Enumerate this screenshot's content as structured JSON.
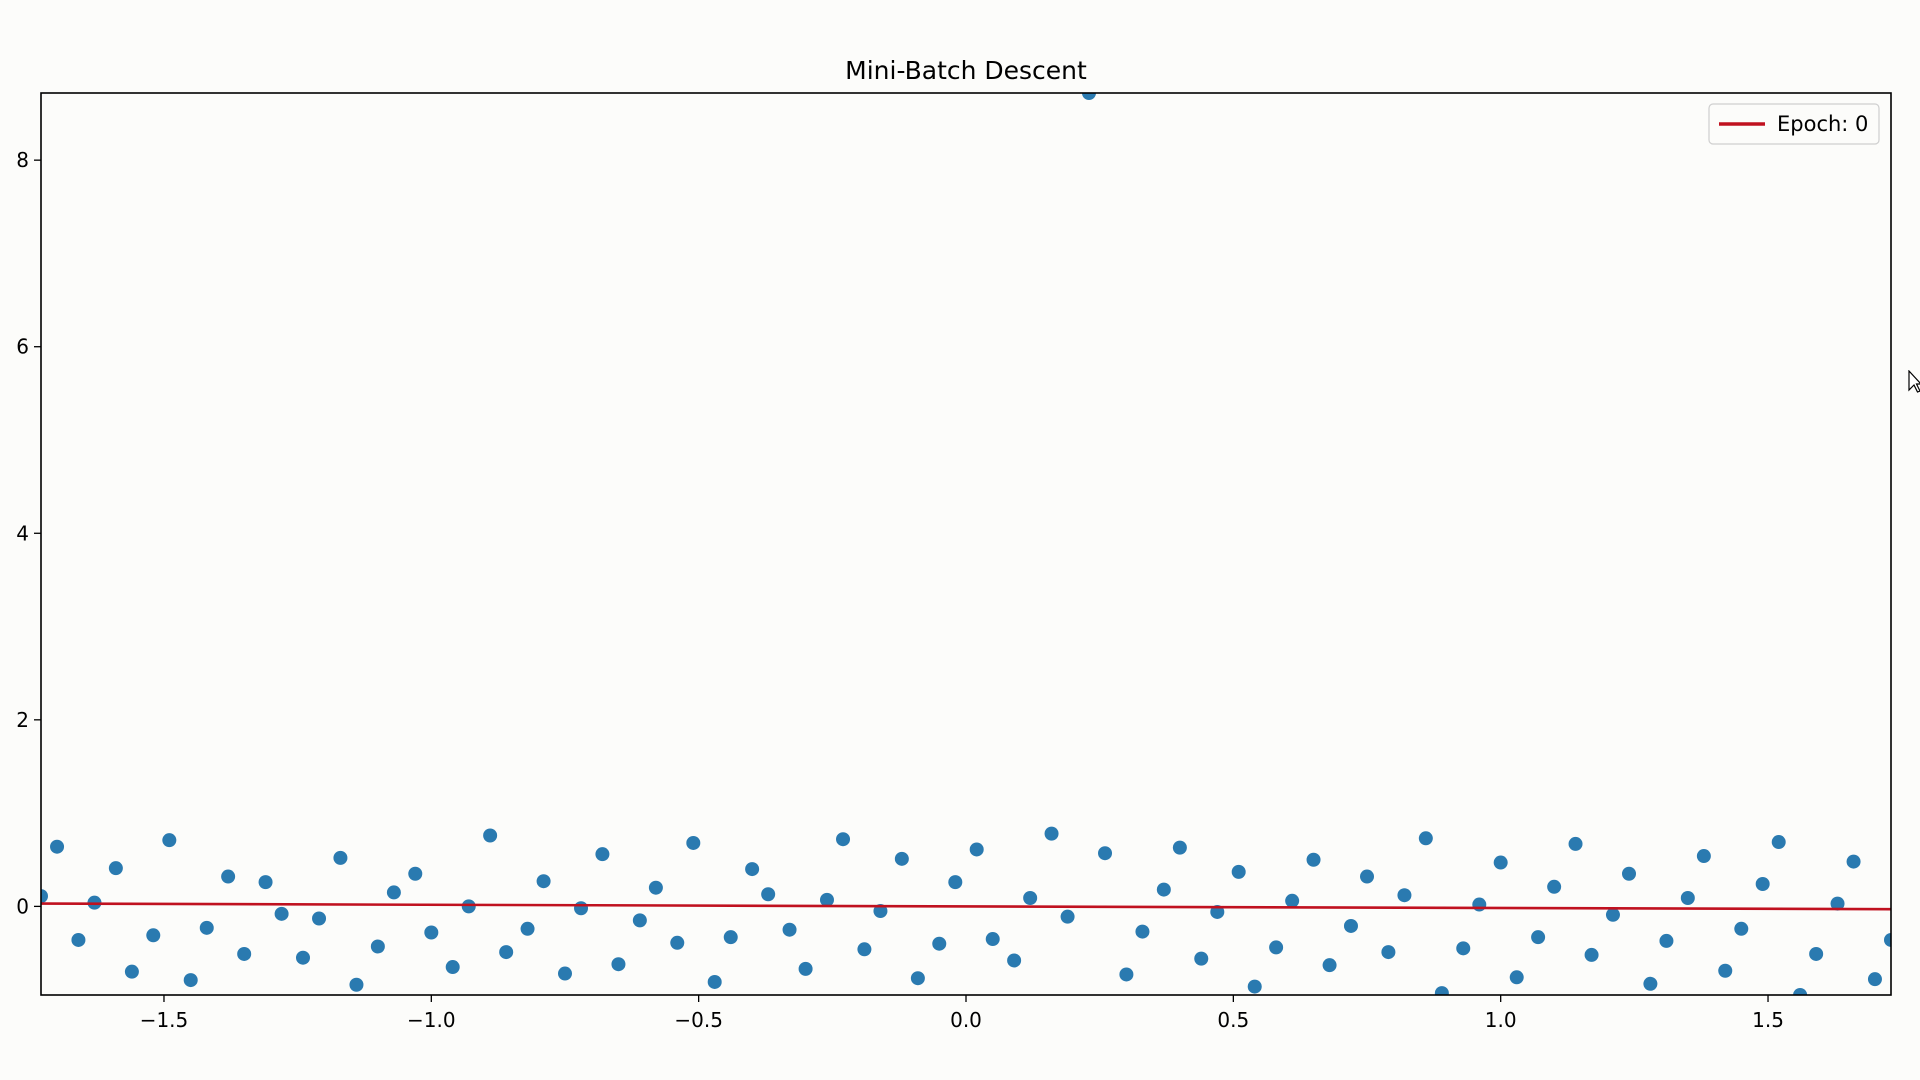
{
  "chart_data": {
    "type": "scatter",
    "title": "Mini-Batch Descent",
    "xlabel": "",
    "ylabel": "",
    "xlim": [
      -1.73,
      1.73
    ],
    "ylim": [
      -0.95,
      8.72
    ],
    "grid": false,
    "legend_position": "top-right",
    "x_ticks": [
      -1.5,
      -1.0,
      -0.5,
      0.0,
      0.5,
      1.0,
      1.5
    ],
    "x_tick_labels": [
      "−1.5",
      "−1.0",
      "−0.5",
      "0.0",
      "0.5",
      "1.0",
      "1.5"
    ],
    "y_ticks": [
      0,
      2,
      4,
      6,
      8
    ],
    "y_tick_labels": [
      "0",
      "2",
      "4",
      "6",
      "8"
    ],
    "scatter": {
      "color": "#2a7ab0",
      "x": [
        -1.73,
        -1.7,
        -1.66,
        -1.63,
        -1.59,
        -1.56,
        -1.52,
        -1.49,
        -1.45,
        -1.42,
        -1.38,
        -1.35,
        -1.31,
        -1.28,
        -1.24,
        -1.21,
        -1.17,
        -1.14,
        -1.1,
        -1.07,
        -1.03,
        -1.0,
        -0.96,
        -0.93,
        -0.89,
        -0.86,
        -0.82,
        -0.79,
        -0.75,
        -0.72,
        -0.68,
        -0.65,
        -0.61,
        -0.58,
        -0.54,
        -0.51,
        -0.47,
        -0.44,
        -0.4,
        -0.37,
        -0.33,
        -0.3,
        -0.26,
        -0.23,
        -0.19,
        -0.16,
        -0.12,
        -0.09,
        -0.05,
        -0.02,
        0.02,
        0.05,
        0.09,
        0.12,
        0.16,
        0.19,
        0.23,
        0.26,
        0.3,
        0.33,
        0.37,
        0.4,
        0.44,
        0.47,
        0.51,
        0.54,
        0.58,
        0.61,
        0.65,
        0.68,
        0.72,
        0.75,
        0.79,
        0.82,
        0.86,
        0.89,
        0.93,
        0.96,
        1.0,
        1.03,
        1.07,
        1.1,
        1.14,
        1.17,
        1.21,
        1.24,
        1.28,
        1.31,
        1.35,
        1.38,
        1.42,
        1.45,
        1.49,
        1.52,
        1.56,
        1.59,
        1.63,
        1.66,
        1.7,
        1.73
      ],
      "y": [
        0.11,
        0.64,
        -0.36,
        0.04,
        0.41,
        -0.7,
        -0.31,
        0.71,
        -0.79,
        -0.23,
        0.32,
        -0.51,
        0.26,
        -0.08,
        -0.55,
        -0.13,
        0.52,
        -0.84,
        -0.43,
        0.15,
        0.35,
        -0.28,
        -0.65,
        0.0,
        0.76,
        -0.49,
        -0.24,
        0.27,
        -0.72,
        -0.02,
        0.56,
        -0.62,
        -0.15,
        0.2,
        -0.39,
        0.68,
        -0.81,
        -0.33,
        0.4,
        0.13,
        -0.25,
        -0.67,
        0.07,
        0.72,
        -0.46,
        -0.05,
        0.51,
        -0.77,
        -0.4,
        0.26,
        0.61,
        -0.35,
        -0.58,
        0.09,
        0.78,
        -0.11,
        8.72,
        0.57,
        -0.73,
        -0.27,
        0.18,
        0.63,
        -0.56,
        -0.06,
        0.37,
        -0.86,
        -0.44,
        0.06,
        0.5,
        -0.63,
        -0.21,
        0.32,
        -0.49,
        0.12,
        0.73,
        -0.93,
        -0.45,
        0.02,
        0.47,
        -0.76,
        -0.33,
        0.21,
        0.67,
        -0.52,
        -0.09,
        0.35,
        -0.83,
        -0.37,
        0.09,
        0.54,
        -0.69,
        -0.24,
        0.24,
        0.69,
        -0.95,
        -0.51,
        0.03,
        0.48,
        -0.78,
        -0.36
      ]
    },
    "series": [
      {
        "name": "Epoch: 0",
        "type": "line",
        "color": "#c0111f",
        "x": [
          -1.73,
          1.73
        ],
        "y": [
          0.03,
          -0.03
        ]
      }
    ]
  }
}
